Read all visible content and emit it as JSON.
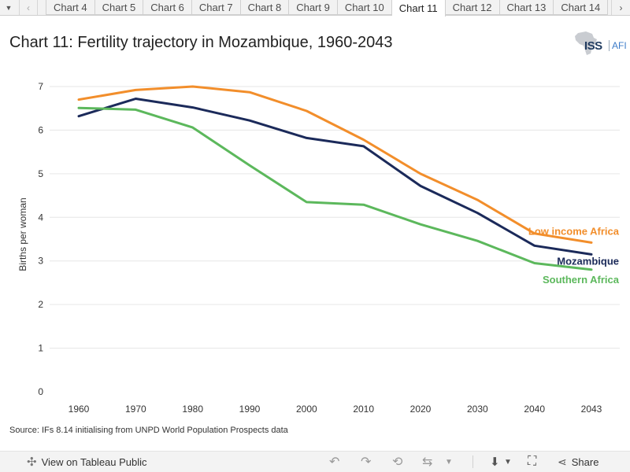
{
  "tabs": [
    "Chart 4",
    "Chart 5",
    "Chart 6",
    "Chart 7",
    "Chart 8",
    "Chart 9",
    "Chart 10",
    "Chart 11",
    "Chart 12",
    "Chart 13",
    "Chart 14"
  ],
  "active_tab": "Chart 11",
  "logo": {
    "iss": "ISS",
    "afi": "AFI"
  },
  "chart_data": {
    "type": "line",
    "title": "Chart 11: Fertility trajectory in Mozambique, 1960-2043",
    "xlabel": "",
    "ylabel": "Births per woman",
    "ylim": [
      0,
      7
    ],
    "yticks": [
      0,
      1,
      2,
      3,
      4,
      5,
      6,
      7
    ],
    "categories": [
      "1960",
      "1970",
      "1980",
      "1990",
      "2000",
      "2010",
      "2020",
      "2030",
      "2040",
      "2043"
    ],
    "grid": true,
    "series": [
      {
        "name": "Low income Africa",
        "color": "#f28e2b",
        "values": [
          6.7,
          6.92,
          7.0,
          6.87,
          6.44,
          5.78,
          5.0,
          4.4,
          3.63,
          3.42
        ]
      },
      {
        "name": "Mozambique",
        "color": "#1b2a5a",
        "values": [
          6.32,
          6.72,
          6.52,
          6.22,
          5.82,
          5.63,
          4.72,
          4.1,
          3.35,
          3.15
        ]
      },
      {
        "name": "Southern Africa",
        "color": "#5cb85c",
        "values": [
          6.51,
          6.47,
          6.06,
          5.19,
          4.35,
          4.29,
          3.84,
          3.46,
          2.95,
          2.8
        ]
      }
    ]
  },
  "source": "Source: IFs 8.14 initialising from UNPD World Population Prospects data",
  "toolbar": {
    "view_label": "View on Tableau Public",
    "share_label": "Share"
  }
}
